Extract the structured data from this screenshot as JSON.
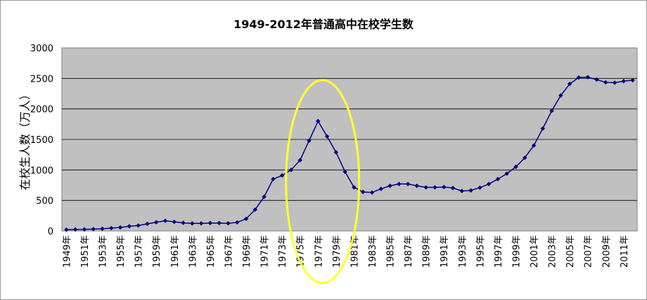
{
  "chart_data": {
    "type": "line",
    "title": "1949-2012年普通高中在校学生数",
    "xlabel": "",
    "ylabel": "在校生人数（万人）",
    "ylim": [
      0,
      3000
    ],
    "yticks": [
      0,
      500,
      1000,
      1500,
      2000,
      2500,
      3000
    ],
    "grid": true,
    "legend": "none",
    "line_color": "#000080",
    "plot_bg": "#c0c0c0",
    "annotation_color": "#ffff33",
    "x_tick_labels": [
      "1949年",
      "1951年",
      "1953年",
      "1955年",
      "1957年",
      "1959年",
      "1961年",
      "1963年",
      "1965年",
      "1967年",
      "1969年",
      "1971年",
      "1973年",
      "1975年",
      "1977年",
      "1979年",
      "1981年",
      "1983年",
      "1985年",
      "1987年",
      "1989年",
      "1991年",
      "1993年",
      "1995年",
      "1997年",
      "1999年",
      "2001年",
      "2003年",
      "2005年",
      "2007年",
      "2009年",
      "2011年"
    ],
    "x": [
      1949,
      1950,
      1951,
      1952,
      1953,
      1954,
      1955,
      1956,
      1957,
      1958,
      1959,
      1960,
      1961,
      1962,
      1963,
      1964,
      1965,
      1966,
      1967,
      1968,
      1969,
      1970,
      1971,
      1972,
      1973,
      1974,
      1975,
      1976,
      1977,
      1978,
      1979,
      1980,
      1981,
      1982,
      1983,
      1984,
      1985,
      1986,
      1987,
      1988,
      1989,
      1990,
      1991,
      1992,
      1993,
      1994,
      1995,
      1996,
      1997,
      1998,
      1999,
      2000,
      2001,
      2002,
      2003,
      2004,
      2005,
      2006,
      2007,
      2008,
      2009,
      2010,
      2011,
      2012
    ],
    "values": [
      21,
      25,
      26,
      31,
      36,
      47,
      58,
      78,
      90,
      117,
      143,
      167,
      150,
      133,
      124,
      124,
      130,
      130,
      126,
      141,
      200,
      350,
      560,
      850,
      910,
      1000,
      1160,
      1480,
      1800,
      1550,
      1290,
      970,
      715,
      640,
      630,
      690,
      740,
      770,
      770,
      740,
      715,
      715,
      720,
      705,
      655,
      665,
      710,
      770,
      850,
      940,
      1050,
      1200,
      1400,
      1680,
      1970,
      2220,
      2410,
      2515,
      2520,
      2480,
      2435,
      2430,
      2455,
      2470
    ]
  }
}
